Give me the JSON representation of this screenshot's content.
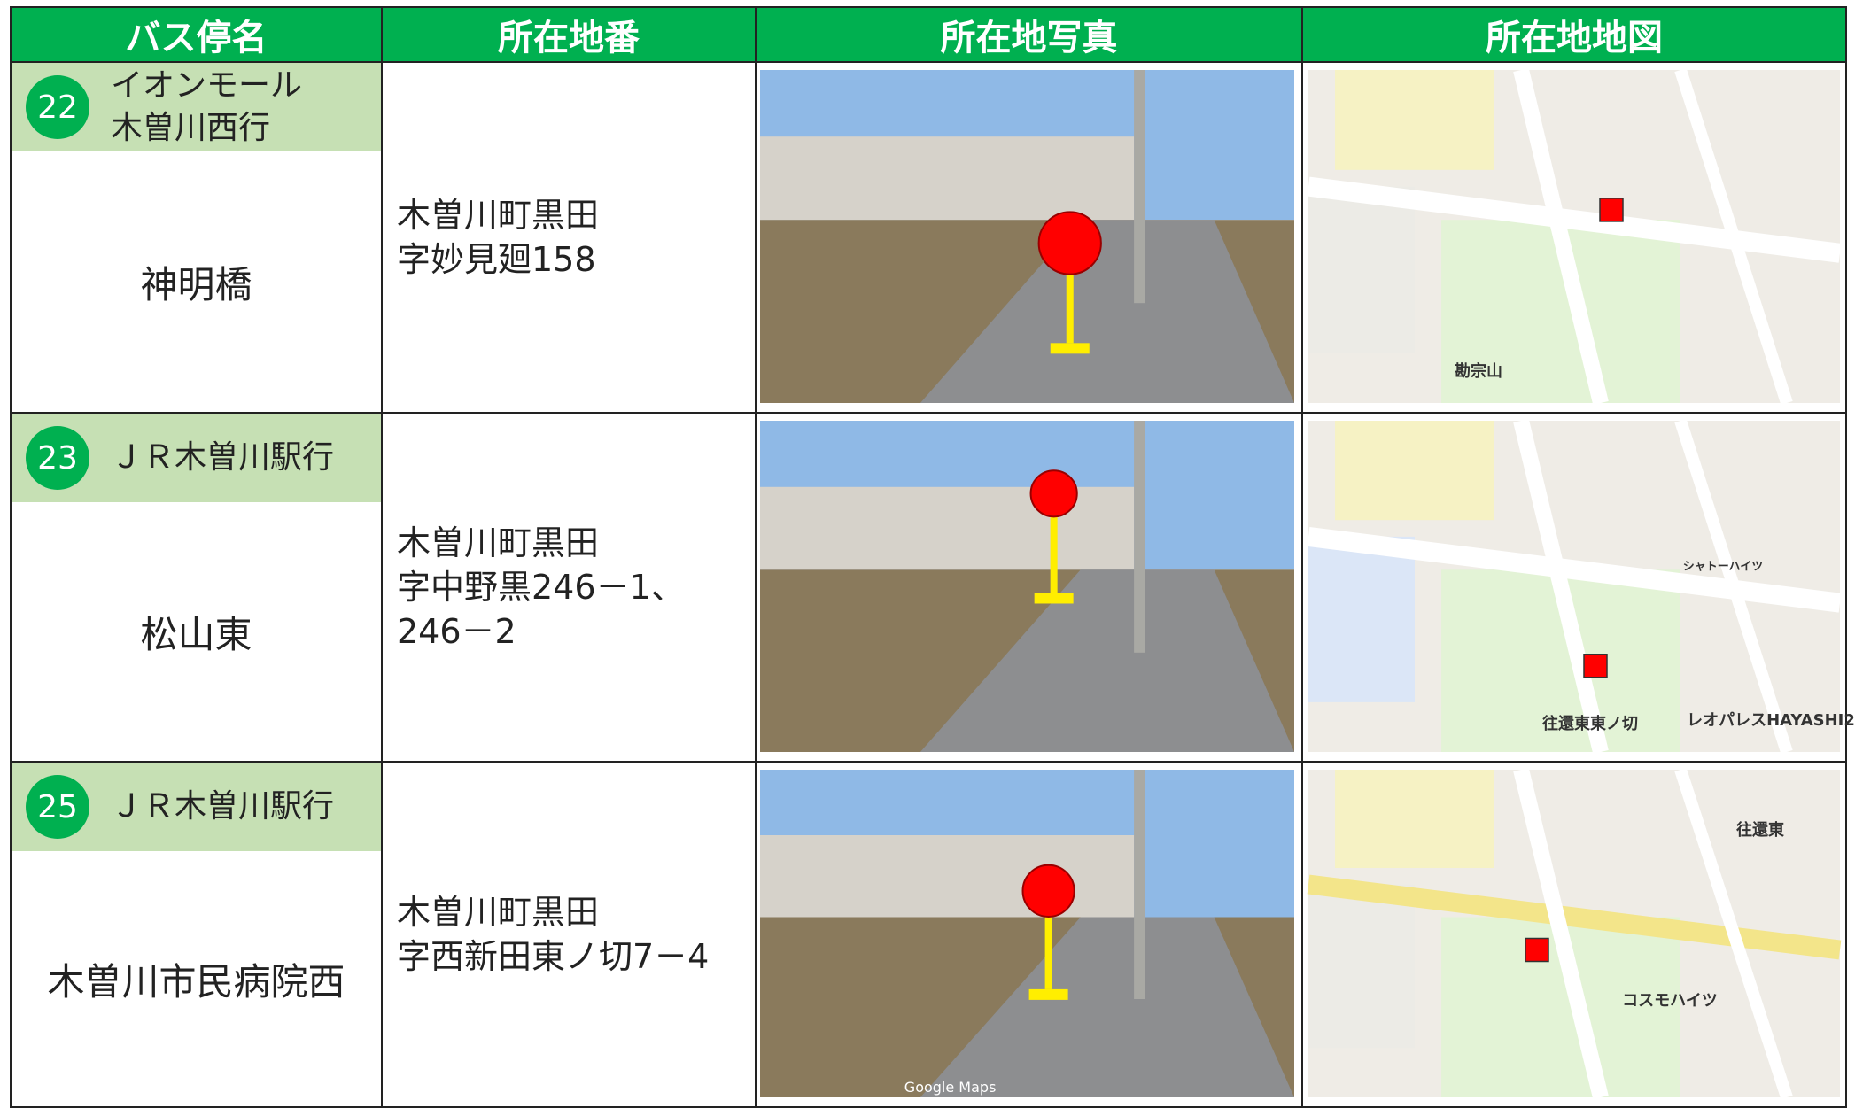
{
  "header": {
    "columns": [
      "バス停名",
      "所在地番",
      "所在地写真",
      "所在地地図"
    ]
  },
  "rows": [
    {
      "number": "22",
      "destination": [
        "イオンモール",
        "木曽川西行"
      ],
      "stop": "神明橋",
      "address": [
        "木曽川町黒田",
        "字妙見廻158"
      ],
      "map_labels": [
        "勘宗山"
      ]
    },
    {
      "number": "23",
      "destination": [
        "ＪＲ木曽川駅行"
      ],
      "stop": "松山東",
      "address": [
        "木曽川町黒田",
        "字中野黒246－1、",
        "246－2"
      ],
      "map_labels": [
        "シャトーハイツ",
        "往還東東ノ切",
        "レオパレスHAYASHI2"
      ]
    },
    {
      "number": "25",
      "destination": [
        "ＪＲ木曽川駅行"
      ],
      "stop": "木曽川市民病院西",
      "address": [
        "木曽川町黒田",
        "字西新田東ノ切7－4"
      ],
      "map_labels": [
        "往還東",
        "コスモハイツ"
      ],
      "photo_caption": "Google Maps"
    }
  ]
}
